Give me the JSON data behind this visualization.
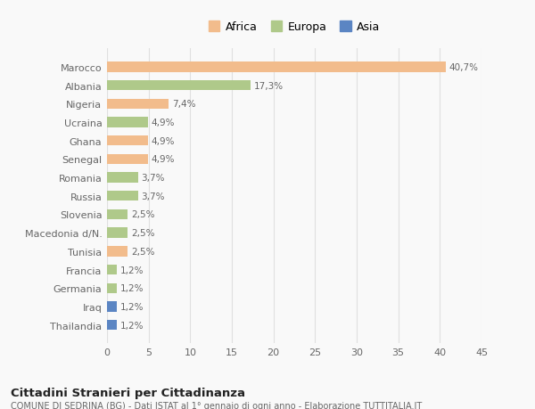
{
  "countries": [
    "Marocco",
    "Albania",
    "Nigeria",
    "Ucraina",
    "Ghana",
    "Senegal",
    "Romania",
    "Russia",
    "Slovenia",
    "Macedonia d/N.",
    "Tunisia",
    "Francia",
    "Germania",
    "Iraq",
    "Thailandia"
  ],
  "values": [
    40.7,
    17.3,
    7.4,
    4.9,
    4.9,
    4.9,
    3.7,
    3.7,
    2.5,
    2.5,
    2.5,
    1.2,
    1.2,
    1.2,
    1.2
  ],
  "labels": [
    "40,7%",
    "17,3%",
    "7,4%",
    "4,9%",
    "4,9%",
    "4,9%",
    "3,7%",
    "3,7%",
    "2,5%",
    "2,5%",
    "2,5%",
    "1,2%",
    "1,2%",
    "1,2%",
    "1,2%"
  ],
  "continents": [
    "Africa",
    "Europa",
    "Africa",
    "Europa",
    "Africa",
    "Africa",
    "Europa",
    "Europa",
    "Europa",
    "Europa",
    "Africa",
    "Europa",
    "Europa",
    "Asia",
    "Asia"
  ],
  "colors": {
    "Africa": "#F2BC8C",
    "Europa": "#AFC98A",
    "Asia": "#5B85C3"
  },
  "xlim": [
    0,
    45
  ],
  "xticks": [
    0,
    5,
    10,
    15,
    20,
    25,
    30,
    35,
    40,
    45
  ],
  "title": "Cittadini Stranieri per Cittadinanza",
  "subtitle": "COMUNE DI SEDRINA (BG) - Dati ISTAT al 1° gennaio di ogni anno - Elaborazione TUTTITALIA.IT",
  "background_color": "#f9f9f9",
  "grid_color": "#e0e0e0"
}
